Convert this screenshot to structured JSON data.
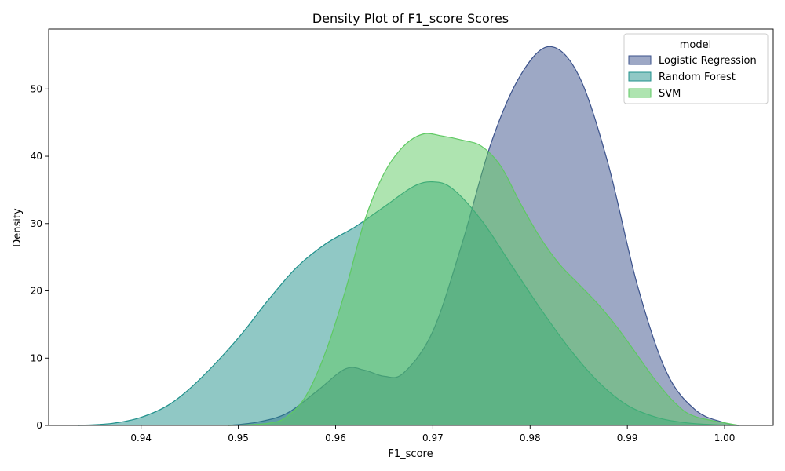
{
  "chart_data": {
    "type": "area",
    "title": "Density Plot of F1_score Scores",
    "xlabel": "F1_score",
    "ylabel": "Density",
    "xlim": [
      0.9305,
      1.005
    ],
    "ylim": [
      0,
      58.9
    ],
    "xticks": [
      0.94,
      0.95,
      0.96,
      0.97,
      0.98,
      0.99,
      1.0
    ],
    "xtick_labels": [
      "0.94",
      "0.95",
      "0.96",
      "0.97",
      "0.98",
      "0.99",
      "1.00"
    ],
    "yticks": [
      0,
      10,
      20,
      30,
      40,
      50
    ],
    "ytick_labels": [
      "0",
      "10",
      "20",
      "30",
      "40",
      "50"
    ],
    "grid": false,
    "legend": {
      "title": "model",
      "placement": "top-right"
    },
    "series": [
      {
        "name": "Logistic Regression",
        "color": "#3b528b",
        "x": [
          0.949,
          0.952,
          0.955,
          0.958,
          0.961,
          0.963,
          0.965,
          0.967,
          0.97,
          0.973,
          0.976,
          0.979,
          0.982,
          0.985,
          0.988,
          0.991,
          0.994,
          0.997,
          1.0,
          1.0015
        ],
        "y": [
          0,
          0.5,
          1.8,
          5.0,
          8.4,
          8.2,
          7.3,
          7.8,
          14,
          27,
          42,
          52,
          56.3,
          52,
          39,
          21,
          8,
          2.3,
          0.4,
          0
        ]
      },
      {
        "name": "Random Forest",
        "color": "#21918c",
        "x": [
          0.9335,
          0.937,
          0.94,
          0.943,
          0.946,
          0.95,
          0.953,
          0.956,
          0.959,
          0.962,
          0.965,
          0.968,
          0.97,
          0.972,
          0.975,
          0.978,
          0.981,
          0.984,
          0.987,
          0.99,
          0.993,
          0.996,
          0.999,
          1.0015
        ],
        "y": [
          0,
          0.3,
          1.2,
          3.2,
          6.8,
          13,
          18.5,
          23.5,
          27,
          29.5,
          32.5,
          35.5,
          36.2,
          35.2,
          30.5,
          24,
          17.5,
          11.5,
          6.5,
          3.0,
          1.2,
          0.4,
          0.1,
          0
        ]
      },
      {
        "name": "SVM",
        "color": "#5ec962",
        "x": [
          0.949,
          0.953,
          0.955,
          0.957,
          0.959,
          0.961,
          0.963,
          0.965,
          0.967,
          0.969,
          0.971,
          0.973,
          0.975,
          0.977,
          0.979,
          0.981,
          0.983,
          0.985,
          0.987,
          0.989,
          0.991,
          0.993,
          0.995,
          0.997,
          1.0015
        ],
        "y": [
          0,
          0.3,
          1.3,
          4.5,
          11,
          20,
          30.5,
          37.5,
          41.5,
          43.3,
          43,
          42.4,
          41.5,
          38.5,
          33,
          28,
          24,
          21,
          18,
          14.5,
          10.5,
          6.5,
          3.2,
          1.3,
          0
        ]
      }
    ]
  }
}
